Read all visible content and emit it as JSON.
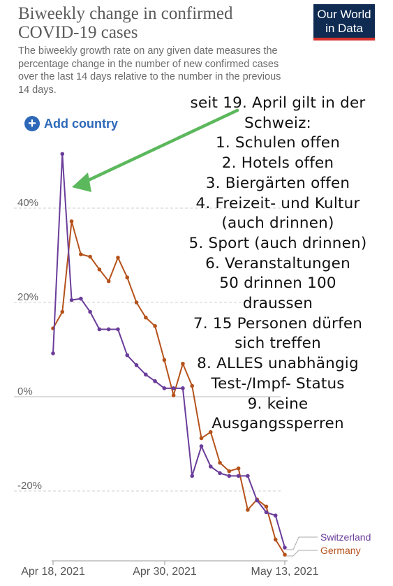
{
  "header": {
    "title_line1": "Biweekly change in confirmed",
    "title_line2": "COVID-19 cases",
    "subtitle": "The biweekly growth rate on any given date measures the percentage change in the number of new confirmed cases over the last 14 days relative to the number in the previous 14 days."
  },
  "logo": {
    "line1": "Our World",
    "line2": "in Data"
  },
  "controls": {
    "add_country_label": "Add country"
  },
  "annotation": {
    "lines": [
      "seit 19. April gilt in der",
      "Schweiz:",
      "1. Schulen offen",
      "2. Hotels offen",
      "3. Biergärten offen",
      "4. Freizeit- und Kultur",
      "(auch drinnen)",
      "5. Sport (auch drinnen)",
      "6. Veranstaltungen",
      "50 drinnen 100",
      "draussen",
      "7. 15 Personen dürfen",
      "sich treffen",
      "8. ALLES unabhängig",
      "Test-/Impf- Status",
      "9. keine",
      "Ausgangssperren"
    ],
    "arrow_color": "#5cb85c"
  },
  "chart_data": {
    "type": "line",
    "y_ticks": [
      -20,
      0,
      20,
      40
    ],
    "y_tick_labels": [
      "-20%",
      "0%",
      "20%",
      "40%"
    ],
    "ylim": [
      -34,
      55
    ],
    "x_start": "2021-04-18",
    "x_end": "2021-05-13",
    "x_tick_labels": [
      "Apr 18, 2021",
      "Apr 30, 2021",
      "May 13, 2021"
    ],
    "grid": true,
    "legend_position": "bottom-right",
    "series": [
      {
        "name": "Switzerland",
        "color": "#6a3d9a",
        "points": [
          [
            "2021-04-18",
            9.2
          ],
          [
            "2021-04-19",
            51.5
          ],
          [
            "2021-04-20",
            20.5
          ],
          [
            "2021-04-21",
            20.8
          ],
          [
            "2021-04-22",
            18.0
          ],
          [
            "2021-04-23",
            14.3
          ],
          [
            "2021-04-24",
            14.3
          ],
          [
            "2021-04-25",
            14.3
          ],
          [
            "2021-04-26",
            8.8
          ],
          [
            "2021-04-27",
            6.7
          ],
          [
            "2021-04-28",
            4.7
          ],
          [
            "2021-04-29",
            3.3
          ],
          [
            "2021-04-30",
            1.8
          ],
          [
            "2021-05-01",
            1.8
          ],
          [
            "2021-05-02",
            1.8
          ],
          [
            "2021-05-03",
            -16.8
          ],
          [
            "2021-05-04",
            -10.5
          ],
          [
            "2021-05-05",
            -14.8
          ],
          [
            "2021-05-06",
            -16.2
          ],
          [
            "2021-05-07",
            -16.8
          ],
          [
            "2021-05-08",
            -16.8
          ],
          [
            "2021-05-09",
            -16.8
          ],
          [
            "2021-05-10",
            -22.0
          ],
          [
            "2021-05-11",
            -24.5
          ],
          [
            "2021-05-12",
            -25.2
          ],
          [
            "2021-05-13",
            -32.0
          ]
        ]
      },
      {
        "name": "Germany",
        "color": "#b5521b",
        "points": [
          [
            "2021-04-18",
            14.5
          ],
          [
            "2021-04-19",
            18.0
          ],
          [
            "2021-04-20",
            37.2
          ],
          [
            "2021-04-21",
            30.2
          ],
          [
            "2021-04-22",
            29.7
          ],
          [
            "2021-04-23",
            27.0
          ],
          [
            "2021-04-24",
            24.5
          ],
          [
            "2021-04-25",
            29.5
          ],
          [
            "2021-04-26",
            25.3
          ],
          [
            "2021-04-27",
            20.0
          ],
          [
            "2021-04-28",
            16.8
          ],
          [
            "2021-04-29",
            15.0
          ],
          [
            "2021-04-30",
            7.8
          ],
          [
            "2021-05-01",
            0.3
          ],
          [
            "2021-05-02",
            7.0
          ],
          [
            "2021-05-03",
            2.3
          ],
          [
            "2021-05-04",
            -8.8
          ],
          [
            "2021-05-05",
            -7.5
          ],
          [
            "2021-05-06",
            -14.0
          ],
          [
            "2021-05-07",
            -15.8
          ],
          [
            "2021-05-08",
            -15.2
          ],
          [
            "2021-05-09",
            -24.0
          ],
          [
            "2021-05-10",
            -21.8
          ],
          [
            "2021-05-11",
            -23.3
          ],
          [
            "2021-05-12",
            -30.3
          ],
          [
            "2021-05-13",
            -33.5
          ]
        ]
      }
    ]
  }
}
